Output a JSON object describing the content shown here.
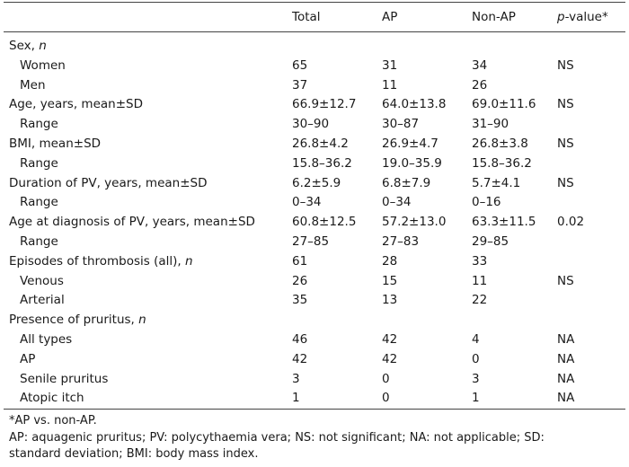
{
  "header": {
    "col0": "",
    "col1": "Total",
    "col2": "AP",
    "col3": "Non-AP",
    "col4_italic": "p",
    "col4_rest": "-value*"
  },
  "rows": [
    {
      "label": "Sex, ",
      "label_italic": "n",
      "indent": false,
      "total": "",
      "ap": "",
      "nonap": "",
      "p": ""
    },
    {
      "label": "Women",
      "label_italic": "",
      "indent": true,
      "total": "65",
      "ap": "31",
      "nonap": "34",
      "p": "NS"
    },
    {
      "label": "Men",
      "label_italic": "",
      "indent": true,
      "total": "37",
      "ap": "11",
      "nonap": "26",
      "p": ""
    },
    {
      "label": "Age, years, mean±SD",
      "label_italic": "",
      "indent": false,
      "total": "66.9±12.7",
      "ap": "64.0±13.8",
      "nonap": "69.0±11.6",
      "p": "NS"
    },
    {
      "label": "Range",
      "label_italic": "",
      "indent": true,
      "total": "30–90",
      "ap": "30–87",
      "nonap": "31–90",
      "p": ""
    },
    {
      "label": "BMI, mean±SD",
      "label_italic": "",
      "indent": false,
      "total": "26.8±4.2",
      "ap": "26.9±4.7",
      "nonap": "26.8±3.8",
      "p": "NS"
    },
    {
      "label": "Range",
      "label_italic": "",
      "indent": true,
      "total": "15.8–36.2",
      "ap": "19.0–35.9",
      "nonap": "15.8–36.2",
      "p": ""
    },
    {
      "label": "Duration of PV, years, mean±SD",
      "label_italic": "",
      "indent": false,
      "total": "6.2±5.9",
      "ap": "6.8±7.9",
      "nonap": "5.7±4.1",
      "p": "NS"
    },
    {
      "label": "Range",
      "label_italic": "",
      "indent": true,
      "total": "0–34",
      "ap": "0–34",
      "nonap": "0–16",
      "p": ""
    },
    {
      "label": "Age at diagnosis of PV, years, mean±SD",
      "label_italic": "",
      "indent": false,
      "total": "60.8±12.5",
      "ap": "57.2±13.0",
      "nonap": "63.3±11.5",
      "p": "0.02"
    },
    {
      "label": "Range",
      "label_italic": "",
      "indent": true,
      "total": "27–85",
      "ap": "27–83",
      "nonap": "29–85",
      "p": ""
    },
    {
      "label": "Episodes of thrombosis (all), ",
      "label_italic": "n",
      "indent": false,
      "total": "61",
      "ap": "28",
      "nonap": "33",
      "p": ""
    },
    {
      "label": "Venous",
      "label_italic": "",
      "indent": true,
      "total": "26",
      "ap": "15",
      "nonap": "11",
      "p": "NS"
    },
    {
      "label": "Arterial",
      "label_italic": "",
      "indent": true,
      "total": "35",
      "ap": "13",
      "nonap": "22",
      "p": ""
    },
    {
      "label": "Presence of pruritus, ",
      "label_italic": "n",
      "indent": false,
      "total": "",
      "ap": "",
      "nonap": "",
      "p": ""
    },
    {
      "label": "All types",
      "label_italic": "",
      "indent": true,
      "total": "46",
      "ap": "42",
      "nonap": "4",
      "p": "NA"
    },
    {
      "label": "AP",
      "label_italic": "",
      "indent": true,
      "total": "42",
      "ap": "42",
      "nonap": "0",
      "p": "NA"
    },
    {
      "label": "Senile pruritus",
      "label_italic": "",
      "indent": true,
      "total": "3",
      "ap": "0",
      "nonap": "3",
      "p": "NA"
    },
    {
      "label": "Atopic itch",
      "label_italic": "",
      "indent": true,
      "total": "1",
      "ap": "0",
      "nonap": "1",
      "p": "NA"
    }
  ],
  "footnotes": {
    "asterisk": "*AP vs. non-AP.",
    "abbrev_line1": "AP: aquagenic pruritus; PV: polycythaemia vera; NS: not significant; NA: not applicable; SD:",
    "abbrev_line2": "standard deviation; BMI: body mass index."
  }
}
